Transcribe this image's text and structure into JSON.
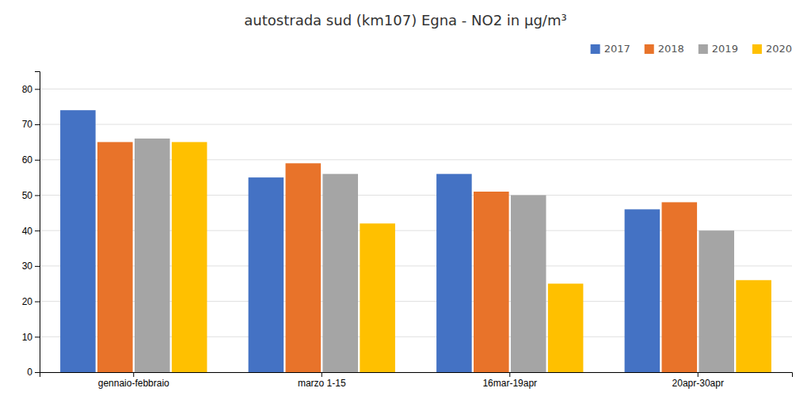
{
  "chart_data": {
    "type": "bar",
    "title": "autostrada sud (km107) Egna - NO2 in μg/m³",
    "categories": [
      "gennaio-febbraio",
      "marzo 1-15",
      "16mar-19apr",
      "20apr-30apr"
    ],
    "series": [
      {
        "name": "2017",
        "color": "#4472C4",
        "values": [
          74,
          55,
          56,
          46
        ]
      },
      {
        "name": "2018",
        "color": "#E8732A",
        "values": [
          65,
          59,
          51,
          48
        ]
      },
      {
        "name": "2019",
        "color": "#A5A5A5",
        "values": [
          66,
          56,
          50,
          40
        ]
      },
      {
        "name": "2020",
        "color": "#FFC000",
        "values": [
          65,
          42,
          25,
          26
        ]
      }
    ],
    "ylim": [
      0,
      85
    ],
    "yticks": [
      0,
      10,
      20,
      30,
      40,
      50,
      60,
      70,
      80
    ],
    "grid": true,
    "legend": "upper right"
  }
}
